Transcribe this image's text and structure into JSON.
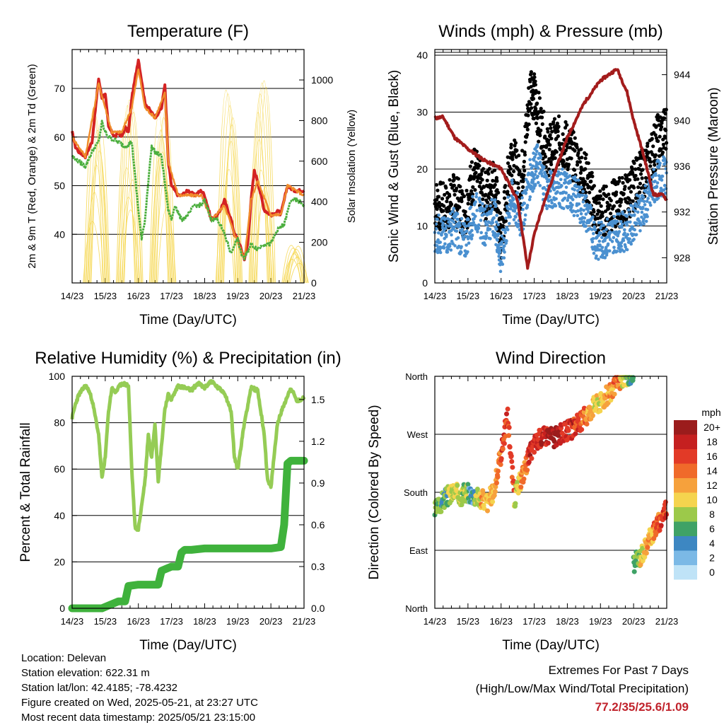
{
  "chart_data": [
    {
      "type": "line",
      "title": "Temperature (F)",
      "xlabel": "Time (Day/UTC)",
      "ylabel": "2m & 9m T (Red, Orange) & 2m Td (Green)",
      "y2label": "Solar Insolation (Yellow)",
      "x_ticks": [
        "14/23",
        "15/23",
        "16/23",
        "17/23",
        "18/23",
        "19/23",
        "20/23",
        "21/23"
      ],
      "xlim": [
        0,
        7
      ],
      "ylim": [
        30,
        78
      ],
      "y_ticks": [
        40,
        50,
        60,
        70
      ],
      "y2lim": [
        0,
        1150
      ],
      "y2_ticks": [
        0,
        200,
        400,
        600,
        800,
        1000
      ],
      "grid_y": true,
      "series": [
        {
          "color": "#d42323",
          "x": [
            0,
            0.1,
            0.2,
            0.4,
            0.6,
            0.8,
            0.9,
            1.0,
            1.1,
            1.2,
            1.3,
            1.4,
            1.5,
            1.6,
            1.7,
            1.8,
            2.0,
            2.2,
            2.5,
            2.7,
            2.8,
            2.9,
            3.0,
            3.1,
            3.2,
            3.3,
            3.5,
            3.7,
            3.9,
            4.0,
            4.2,
            4.4,
            4.6,
            4.8,
            4.9,
            5.0,
            5.1,
            5.2,
            5.3,
            5.4,
            5.5,
            5.6,
            5.8,
            6.0,
            6.1,
            6.2,
            6.3,
            6.5,
            6.7,
            6.8,
            7.0
          ],
          "y": [
            61,
            58,
            57,
            56,
            59,
            72,
            68,
            69,
            62,
            61,
            60,
            61,
            60,
            62,
            61,
            68,
            76,
            67,
            64,
            66,
            71,
            55,
            50,
            49,
            48,
            48,
            49,
            48,
            49,
            48,
            43,
            44,
            47,
            43,
            40,
            39,
            37,
            35,
            38,
            47,
            53,
            51,
            45,
            44,
            44,
            45,
            44,
            50,
            49,
            49,
            49
          ]
        },
        {
          "color": "#f08c2c",
          "x": [
            0,
            0.4,
            0.8,
            1.0,
            1.2,
            1.5,
            1.8,
            2.0,
            2.2,
            2.5,
            2.8,
            2.9,
            3.2,
            3.5,
            3.9,
            4.2,
            4.6,
            4.9,
            5.2,
            5.4,
            5.6,
            6.0,
            6.3,
            6.5,
            7.0
          ],
          "y": [
            60,
            56,
            71,
            66,
            61,
            61,
            66,
            74,
            66,
            64,
            69,
            55,
            48,
            48,
            48,
            43,
            46,
            40,
            35,
            47,
            51,
            44,
            44,
            50,
            48
          ]
        },
        {
          "color": "#4caf3f",
          "x": [
            0,
            0.2,
            0.4,
            0.6,
            0.8,
            0.9,
            1.0,
            1.1,
            1.4,
            1.6,
            1.8,
            2.0,
            2.1,
            2.2,
            2.3,
            2.4,
            2.5,
            2.7,
            2.9,
            3.0,
            3.1,
            3.3,
            3.5,
            3.7,
            3.9,
            4.0,
            4.2,
            4.4,
            4.6,
            4.8,
            4.9,
            5.0,
            5.1,
            5.2,
            5.4,
            5.6,
            5.8,
            6.0,
            6.2,
            6.4,
            6.6,
            6.8,
            7.0
          ],
          "y": [
            56,
            55,
            54,
            57,
            59,
            63,
            61,
            60,
            59,
            58,
            59,
            45,
            39,
            43,
            51,
            58,
            57,
            56,
            45,
            43,
            46,
            43,
            44,
            46,
            46,
            47,
            43,
            43,
            40,
            36,
            38,
            39,
            36,
            35,
            38,
            37,
            38,
            38,
            41,
            42,
            47,
            47,
            46
          ]
        }
      ],
      "insolation": {
        "color": "#f5d446",
        "peaks": [
          {
            "day": 0.75,
            "value": 910
          },
          {
            "day": 1.75,
            "value": 950
          },
          {
            "day": 2.75,
            "value": 930
          },
          {
            "day": 4.75,
            "value": 1000
          },
          {
            "day": 5.75,
            "value": 1050
          },
          {
            "day": 6.75,
            "value": 200
          }
        ]
      }
    },
    {
      "type": "scatter",
      "title": "Winds (mph) & Pressure (mb)",
      "xlabel": "Time (Day/UTC)",
      "ylabel": "Sonic Wind & Gust (Blue, Black)",
      "y2label": "Station Pressure (Maroon)",
      "x_ticks": [
        "14/23",
        "15/23",
        "16/23",
        "17/23",
        "18/23",
        "19/23",
        "20/23",
        "21/23"
      ],
      "xlim": [
        0,
        7
      ],
      "ylim": [
        0,
        41
      ],
      "y_ticks": [
        0,
        10,
        20,
        30,
        40
      ],
      "y2lim": [
        925.8,
        946.2
      ],
      "y2_ticks": [
        928,
        932,
        936,
        940,
        944
      ],
      "grid_y": true,
      "gust_color": "#000000",
      "wind_color": "#4a90d0",
      "gust": {
        "x": [
          0,
          0.3,
          0.6,
          0.9,
          1.2,
          1.5,
          1.8,
          2.0,
          2.3,
          2.6,
          2.9,
          3.1,
          3.4,
          3.7,
          4.0,
          4.3,
          4.6,
          4.9,
          5.2,
          5.5,
          5.8,
          6.1,
          6.4,
          6.7,
          7.0
        ],
        "y": [
          14,
          13,
          15,
          12,
          20,
          15,
          18,
          7,
          23,
          17,
          35,
          30,
          23,
          25,
          24,
          21,
          18,
          12,
          13,
          14,
          15,
          18,
          20,
          25,
          27
        ]
      },
      "wind": {
        "x": [
          0,
          0.3,
          0.6,
          0.9,
          1.2,
          1.5,
          1.8,
          2.0,
          2.3,
          2.6,
          2.9,
          3.1,
          3.4,
          3.7,
          4.0,
          4.3,
          4.6,
          4.9,
          5.2,
          5.5,
          5.8,
          6.1,
          6.4,
          6.7,
          7.0
        ],
        "y": [
          9,
          8,
          10,
          7,
          13,
          10,
          12,
          4,
          15,
          11,
          19,
          21,
          16,
          17,
          16,
          15,
          12,
          7,
          8,
          9,
          9,
          12,
          14,
          18,
          19
        ]
      },
      "pressure": {
        "color": "#a31c1c",
        "x": [
          0,
          0.25,
          0.6,
          1.0,
          1.5,
          2.0,
          2.5,
          2.8,
          3.0,
          3.2,
          3.5,
          4.0,
          4.5,
          5.0,
          5.5,
          5.8,
          6.0,
          6.3,
          6.6,
          6.9,
          7.0
        ],
        "y": [
          940.2,
          940.3,
          938.5,
          937.5,
          936.5,
          935.8,
          933.0,
          927.1,
          930.0,
          932.0,
          934.5,
          938.5,
          941.5,
          943.5,
          944.5,
          942.5,
          940.0,
          937.0,
          933.5,
          933.5,
          933.0
        ]
      }
    },
    {
      "type": "line",
      "title": "Relative Humidity (%) & Precipitation (in)",
      "xlabel": "Time (Day/UTC)",
      "ylabel": "Percent & Total Rainfall",
      "x_ticks": [
        "14/23",
        "15/23",
        "16/23",
        "17/23",
        "18/23",
        "19/23",
        "20/23",
        "21/23"
      ],
      "xlim": [
        0,
        7
      ],
      "ylim": [
        0,
        100
      ],
      "y_ticks": [
        0,
        20,
        40,
        60,
        80,
        100
      ],
      "y2lim": [
        0,
        1.667
      ],
      "y2_ticks": [
        "0.0",
        "0.3",
        "0.6",
        "0.9",
        "1.2",
        "1.5"
      ],
      "grid_y": true,
      "series": [
        {
          "name": "rh",
          "color": "#95cc55",
          "x": [
            0,
            0.1,
            0.2,
            0.4,
            0.5,
            0.6,
            0.8,
            0.9,
            1.0,
            1.1,
            1.2,
            1.3,
            1.5,
            1.7,
            1.8,
            1.9,
            2.0,
            2.2,
            2.3,
            2.4,
            2.5,
            2.6,
            2.8,
            2.9,
            3.0,
            3.2,
            3.4,
            3.6,
            3.8,
            4.0,
            4.2,
            4.4,
            4.6,
            4.8,
            4.9,
            5.0,
            5.2,
            5.4,
            5.6,
            5.8,
            5.9,
            6.0,
            6.2,
            6.4,
            6.6,
            6.8,
            7.0
          ],
          "y": [
            82,
            88,
            92,
            96,
            94,
            90,
            75,
            56,
            65,
            85,
            95,
            93,
            97,
            96,
            60,
            35,
            34,
            55,
            75,
            65,
            80,
            55,
            86,
            92,
            90,
            96,
            95,
            94,
            97,
            95,
            98,
            95,
            93,
            85,
            65,
            60,
            80,
            95,
            94,
            75,
            55,
            52,
            80,
            88,
            95,
            89,
            91
          ]
        },
        {
          "name": "precip",
          "color": "#3fb23c",
          "x": [
            0,
            0.6,
            0.9,
            1.1,
            1.4,
            1.6,
            1.7,
            2.0,
            2.3,
            2.6,
            2.7,
            2.8,
            3.0,
            3.2,
            3.3,
            3.4,
            3.6,
            4.0,
            5.0,
            6.0,
            6.3,
            6.4,
            6.5,
            6.6,
            7.0
          ],
          "y": [
            0,
            0,
            0,
            0.02,
            0.05,
            0.05,
            0.16,
            0.17,
            0.17,
            0.17,
            0.27,
            0.28,
            0.3,
            0.3,
            0.4,
            0.42,
            0.42,
            0.43,
            0.43,
            0.43,
            0.44,
            0.6,
            1.04,
            1.06,
            1.06
          ]
        }
      ]
    },
    {
      "type": "scatter",
      "title": "Wind Direction",
      "xlabel": "Time (Day/UTC)",
      "ylabel": "Direction (Colored By Speed)",
      "x_ticks": [
        "14/23",
        "15/23",
        "16/23",
        "17/23",
        "18/23",
        "19/23",
        "20/23",
        "21/23"
      ],
      "xlim": [
        0,
        7
      ],
      "ylim": [
        0,
        360
      ],
      "y_ticks": [
        "North",
        "East",
        "South",
        "West",
        "North"
      ],
      "grid_y": true,
      "x": [
        0,
        0.2,
        0.4,
        0.6,
        0.8,
        1.0,
        1.2,
        1.4,
        1.6,
        1.8,
        2.0,
        2.2,
        2.4,
        2.6,
        2.8,
        3.0,
        3.2,
        3.4,
        3.6,
        3.8,
        4.0,
        4.2,
        4.4,
        4.6,
        4.8,
        5.0,
        5.2,
        5.4,
        5.6,
        5.8,
        6.0,
        6.2,
        6.4,
        6.6,
        6.8,
        7.0
      ],
      "y": [
        150,
        165,
        175,
        180,
        175,
        180,
        175,
        170,
        165,
        185,
        240,
        300,
        170,
        200,
        230,
        255,
        265,
        270,
        265,
        270,
        275,
        280,
        290,
        300,
        315,
        320,
        330,
        340,
        355,
        360,
        70,
        80,
        100,
        120,
        135,
        160
      ],
      "speed": [
        8,
        6,
        9,
        10,
        8,
        4,
        9,
        12,
        11,
        13,
        16,
        15,
        9,
        13,
        18,
        17,
        18,
        20,
        19,
        17,
        18,
        16,
        14,
        12,
        10,
        11,
        12,
        14,
        9,
        6,
        7,
        10,
        12,
        14,
        16,
        18
      ],
      "colorbar": {
        "title": "mph",
        "labels": [
          "20+",
          "18",
          "16",
          "14",
          "12",
          "10",
          "8",
          "6",
          "4",
          "2",
          "0"
        ],
        "colors": [
          "#9b1c1c",
          "#c52020",
          "#e23a27",
          "#f06a2a",
          "#f6a13c",
          "#f5d44e",
          "#9cc94a",
          "#3fa266",
          "#3d87c2",
          "#7bb9e6",
          "#bfe3f7"
        ]
      }
    }
  ],
  "footer": {
    "location": "Location: Delevan",
    "elevation": "Station elevation: 622.31 m",
    "latlon": "Station lat/lon: 42.4185; -78.4232",
    "created": "Figure created on Wed, 2025-05-21, at 23:27 UTC",
    "recent": "Most recent data timestamp: 2025/05/21 23:15:00",
    "extremes_title": "Extremes For Past 7 Days",
    "extremes_sub": "(High/Low/Max Wind/Total Precipitation)",
    "extremes_value": "77.2/35/25.6/1.09"
  }
}
